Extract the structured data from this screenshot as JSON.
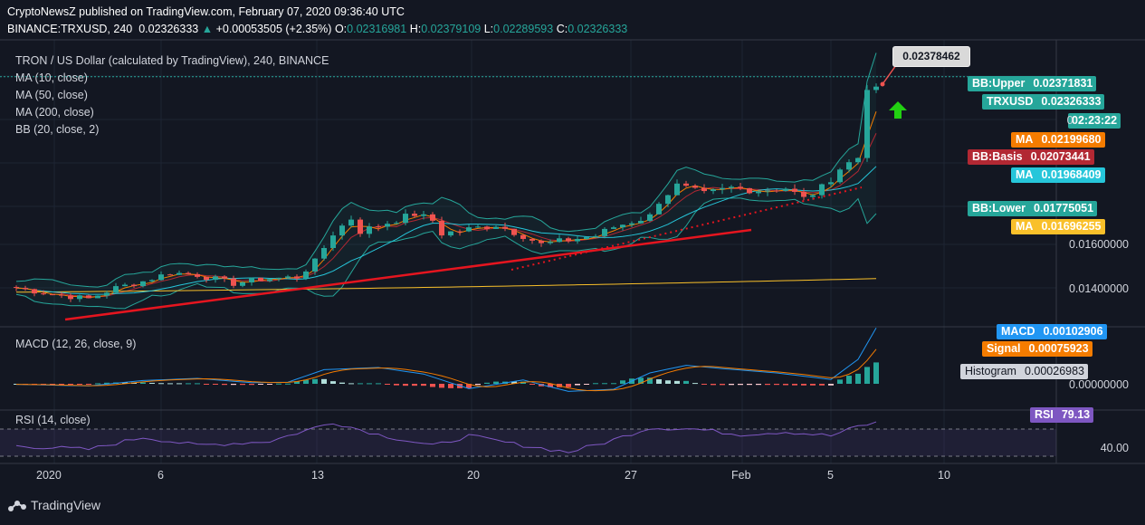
{
  "header": {
    "line1": "CryptoNewsZ published on TradingView.com, February 07, 2020 09:36:40 UTC",
    "symbol": "BINANCE:TRXUSD, 240",
    "last": "0.02326333",
    "change": "+0.00053505 (+2.35%)",
    "o_label": "O:",
    "o": "0.02316981",
    "h_label": "H:",
    "h": "0.02379109",
    "l_label": "L:",
    "l": "0.02289593",
    "c_label": "C:",
    "c": "0.02326333"
  },
  "legend": {
    "title": "TRON / US Dollar (calculated by TradingView), 240, BINANCE",
    "ma10": "MA (10, close)",
    "ma50": "MA (50, close)",
    "ma200": "MA (200, close)",
    "bb": "BB (20, close, 2)",
    "macd": "MACD (12, 26, close, 9)",
    "rsi": "RSI (14, close)"
  },
  "callout": "0.02378462",
  "price_tags": [
    {
      "name": "BB:Upper",
      "value": "0.02371831",
      "color": "#26a69a"
    },
    {
      "name": "TRXUSD",
      "value": "0.02326333",
      "color": "#26a69a"
    },
    {
      "name": "",
      "value": "02:23:22",
      "color": "#26a69a"
    },
    {
      "name": "MA",
      "value": "0.02199680",
      "color": "#f57c00"
    },
    {
      "name": "BB:Basis",
      "value": "0.02073441",
      "color": "#b22833"
    },
    {
      "name": "MA",
      "value": "0.01968409",
      "color": "#26c6da"
    },
    {
      "name": "BB:Lower",
      "value": "0.01775051",
      "color": "#26a69a"
    },
    {
      "name": "MA",
      "value": "0.01696255",
      "color": "#f9c02a"
    }
  ],
  "countdown_prefix": "0.",
  "price_ticks": [
    "0.01600000",
    "0.01400000"
  ],
  "macd_tags": [
    {
      "name": "MACD",
      "value": "0.00102906",
      "color": "#2196f3"
    },
    {
      "name": "Signal",
      "value": "0.00075923",
      "color": "#f57c00"
    },
    {
      "name": "Histogram",
      "value": "0.00026983",
      "color": "#d1d4dc"
    }
  ],
  "macd_tick": "0.00000000",
  "rsi_tag": {
    "name": "RSI",
    "value": "79.13",
    "color": "#7e57c2"
  },
  "rsi_tick": "40.00",
  "x_ticks": [
    "2020",
    "6",
    "13",
    "20",
    "27",
    "Feb",
    "5",
    "10"
  ],
  "brand": "TradingView",
  "chart_data": {
    "type": "candlestick",
    "title": "TRON / US Dollar (calculated by TradingView), 240, BINANCE",
    "x_ticks": [
      "2020",
      "6",
      "13",
      "20",
      "27",
      "Feb",
      "5",
      "10"
    ],
    "price_axis_ticks": [
      0.014,
      0.016
    ],
    "close_path": [
      [
        0,
        0.014
      ],
      [
        4,
        0.0137
      ],
      [
        8,
        0.0135
      ],
      [
        11,
        0.014
      ],
      [
        14,
        0.0143
      ],
      [
        17,
        0.0147
      ],
      [
        20,
        0.0146
      ],
      [
        24,
        0.0142
      ],
      [
        27,
        0.0144
      ],
      [
        31,
        0.0145
      ],
      [
        33,
        0.0152
      ],
      [
        35,
        0.0165
      ],
      [
        37,
        0.0172
      ],
      [
        38,
        0.0166
      ],
      [
        41,
        0.017
      ],
      [
        44,
        0.0174
      ],
      [
        46,
        0.0171
      ],
      [
        47,
        0.0165
      ],
      [
        50,
        0.0167
      ],
      [
        53,
        0.0169
      ],
      [
        56,
        0.0164
      ],
      [
        58,
        0.016
      ],
      [
        61,
        0.0162
      ],
      [
        64,
        0.0164
      ],
      [
        66,
        0.0168
      ],
      [
        70,
        0.0173
      ],
      [
        71,
        0.018
      ],
      [
        73,
        0.0187
      ],
      [
        76,
        0.0183
      ],
      [
        79,
        0.0186
      ],
      [
        82,
        0.0185
      ],
      [
        85,
        0.0186
      ],
      [
        87,
        0.0181
      ],
      [
        89,
        0.0186
      ],
      [
        91,
        0.0195
      ],
      [
        93,
        0.02
      ],
      [
        94,
        0.0233
      ],
      [
        95,
        0.02326
      ]
    ],
    "macd_path": [
      [
        0,
        -1e-05
      ],
      [
        8,
        -4e-05
      ],
      [
        14,
        6e-05
      ],
      [
        20,
        0.0001
      ],
      [
        26,
        2e-05
      ],
      [
        30,
        3e-05
      ],
      [
        34,
        0.00026
      ],
      [
        40,
        0.0003
      ],
      [
        45,
        0.00018
      ],
      [
        50,
        -9e-05
      ],
      [
        56,
        7e-05
      ],
      [
        61,
        -0.00014
      ],
      [
        66,
        -0.0001
      ],
      [
        70,
        0.0002
      ],
      [
        74,
        0.00034
      ],
      [
        78,
        0.00028
      ],
      [
        84,
        0.0002
      ],
      [
        90,
        8e-05
      ],
      [
        93,
        0.00045
      ],
      [
        95,
        0.00103
      ]
    ],
    "rsi_path": [
      [
        0,
        45
      ],
      [
        8,
        40
      ],
      [
        14,
        58
      ],
      [
        20,
        46
      ],
      [
        28,
        52
      ],
      [
        35,
        80
      ],
      [
        40,
        62
      ],
      [
        46,
        45
      ],
      [
        50,
        60
      ],
      [
        55,
        48
      ],
      [
        61,
        36
      ],
      [
        65,
        50
      ],
      [
        70,
        72
      ],
      [
        75,
        70
      ],
      [
        80,
        62
      ],
      [
        85,
        66
      ],
      [
        90,
        60
      ],
      [
        93,
        74
      ],
      [
        95,
        79.13
      ]
    ],
    "ma10_last": 0.0219968,
    "ma50_last": 0.01968409,
    "ma200_last": 0.01696255,
    "bb_upper_last": 0.02371831,
    "bb_basis_last": 0.02073441,
    "bb_lower_last": 0.01775051,
    "rsi_last": 79.13,
    "macd_last": 0.00102906,
    "signal_last": 0.00075923,
    "histogram_last": 0.00026983,
    "colors": {
      "up": "#26a69a",
      "down": "#ef5350",
      "ma10": "#f57c00",
      "ma50": "#26c6da",
      "ma200": "#f9c02a",
      "bb": "#26a69a",
      "bb_basis": "#b22833",
      "macd": "#2196f3",
      "signal": "#f57c00",
      "rsi": "#7e57c2",
      "trend": "#e5151f"
    }
  }
}
